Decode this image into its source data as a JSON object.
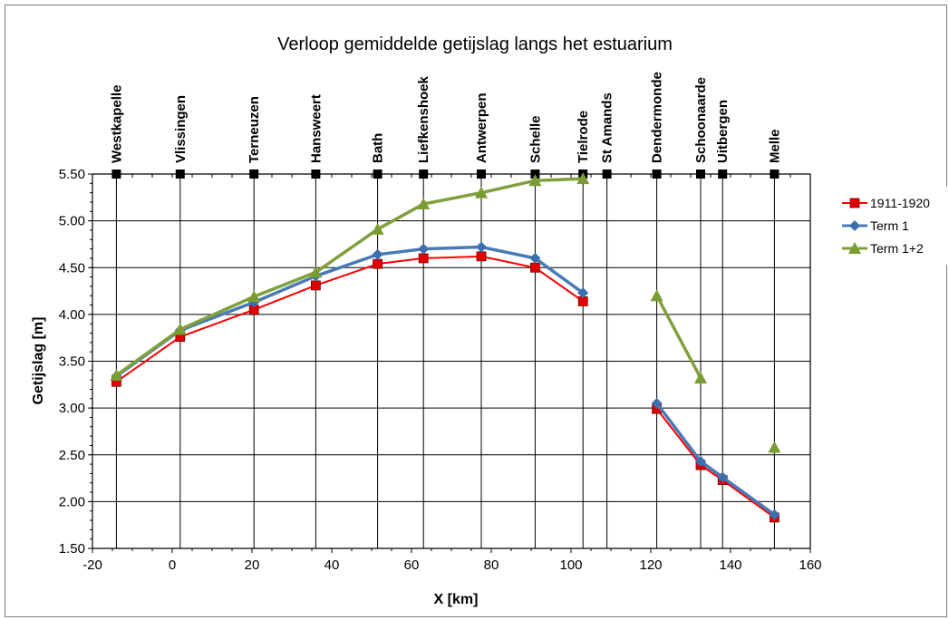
{
  "chart_data": {
    "type": "line",
    "title": "Verloop gemiddelde getijslag langs het estuarium",
    "xlabel": "X [km]",
    "ylabel": "Getijslag [m]",
    "xlim": [
      -20,
      160
    ],
    "ylim": [
      1.5,
      5.5
    ],
    "x_ticks": [
      "-20",
      "0",
      "20",
      "40",
      "60",
      "80",
      "100",
      "120",
      "140",
      "160"
    ],
    "y_ticks": [
      "1.50",
      "2.00",
      "2.50",
      "3.00",
      "3.50",
      "4.00",
      "4.50",
      "5.00",
      "5.50"
    ],
    "grid": true,
    "legend_position": "right",
    "stations": [
      {
        "name": "Westkapelle",
        "x": -14
      },
      {
        "name": "Vlissingen",
        "x": 2
      },
      {
        "name": "Terneuzen",
        "x": 20.5
      },
      {
        "name": "Hansweert",
        "x": 36
      },
      {
        "name": "Bath",
        "x": 51.5
      },
      {
        "name": "Liefkenshoek",
        "x": 63
      },
      {
        "name": "Antwerpen",
        "x": 77.5
      },
      {
        "name": "Schelle",
        "x": 91
      },
      {
        "name": "Tielrode",
        "x": 103
      },
      {
        "name": "St Amands",
        "x": 109
      },
      {
        "name": "Dendermonde",
        "x": 121.5
      },
      {
        "name": "Schoonaarde",
        "x": 132.5
      },
      {
        "name": "Uitbergen",
        "x": 138
      },
      {
        "name": "Melle",
        "x": 151
      }
    ],
    "series": [
      {
        "name": "1911-1920",
        "color": "#ff0000",
        "marker_fill": "#e00000",
        "marker": "square",
        "segments": [
          [
            [
              -14,
              3.28
            ],
            [
              2,
              3.76
            ],
            [
              20.5,
              4.05
            ],
            [
              36,
              4.31
            ],
            [
              51.5,
              4.54
            ],
            [
              63,
              4.6
            ],
            [
              77.5,
              4.62
            ],
            [
              91,
              4.5
            ],
            [
              103,
              4.14
            ]
          ],
          [
            [
              121.5,
              2.99
            ],
            [
              132.5,
              2.39
            ],
            [
              138,
              2.23
            ],
            [
              151,
              1.83
            ]
          ]
        ]
      },
      {
        "name": "Term 1",
        "color": "#4a7ab5",
        "marker_fill": "#3c6fae",
        "marker": "diamond",
        "segments": [
          [
            [
              -14,
              3.34
            ],
            [
              2,
              3.83
            ],
            [
              20.5,
              4.13
            ],
            [
              36,
              4.41
            ],
            [
              51.5,
              4.64
            ],
            [
              63,
              4.7
            ],
            [
              77.5,
              4.72
            ],
            [
              91,
              4.6
            ],
            [
              103,
              4.23
            ]
          ],
          [
            [
              121.5,
              3.05
            ],
            [
              132.5,
              2.43
            ],
            [
              138,
              2.26
            ],
            [
              151,
              1.86
            ]
          ]
        ]
      },
      {
        "name": "Term 1+2",
        "color": "#7fa03c",
        "marker_fill": "#7a9c32",
        "marker": "triangle",
        "segments": [
          [
            [
              -14,
              3.35
            ],
            [
              2,
              3.84
            ],
            [
              20.5,
              4.19
            ],
            [
              36,
              4.45
            ],
            [
              51.5,
              4.91
            ],
            [
              63,
              5.18
            ],
            [
              77.5,
              5.3
            ],
            [
              91,
              5.43
            ],
            [
              103,
              5.45
            ]
          ],
          [
            [
              121.5,
              4.2
            ],
            [
              132.5,
              3.32
            ]
          ],
          [
            [
              151,
              2.58
            ]
          ]
        ]
      }
    ]
  }
}
